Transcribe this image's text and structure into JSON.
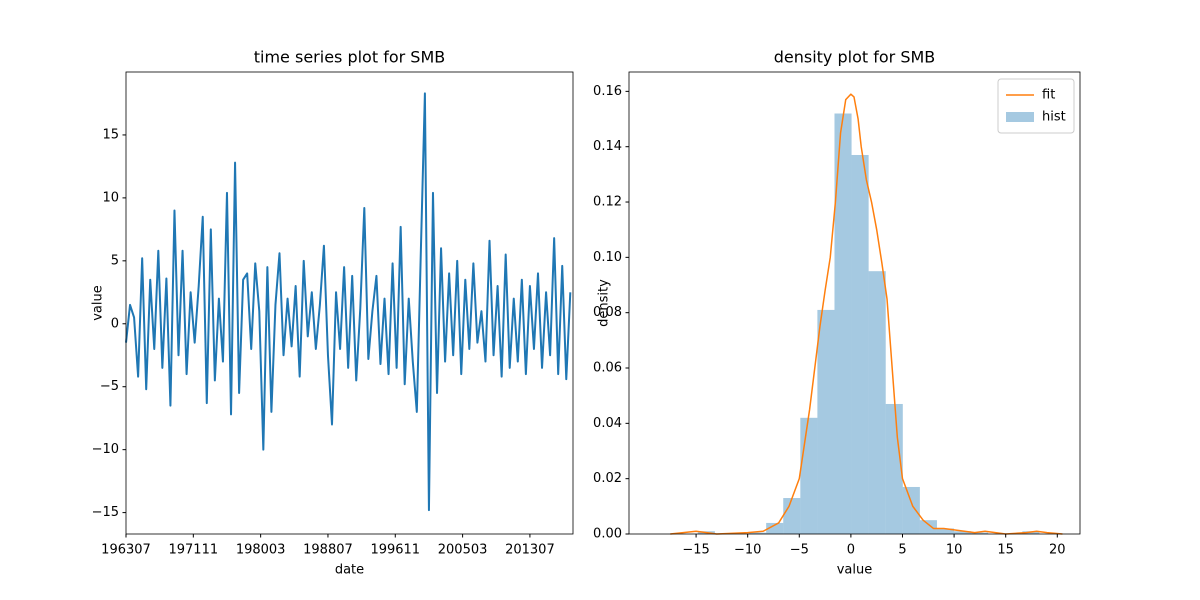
{
  "chart_data": [
    {
      "type": "line",
      "title": "time series plot for SMB",
      "xlabel": "date",
      "ylabel": "value",
      "color": "#1f77b4",
      "x": [
        "196307",
        "196401",
        "196407",
        "196501",
        "196507",
        "196601",
        "196607",
        "196701",
        "196707",
        "196801",
        "196807",
        "196901",
        "196907",
        "197001",
        "197007",
        "197101",
        "197107",
        "197201",
        "197207",
        "197301",
        "197307",
        "197401",
        "197407",
        "197501",
        "197507",
        "197601",
        "197607",
        "197701",
        "197707",
        "197801",
        "197807",
        "197901",
        "197907",
        "198001",
        "198007",
        "198101",
        "198107",
        "198201",
        "198207",
        "198301",
        "198307",
        "198401",
        "198407",
        "198501",
        "198507",
        "198601",
        "198607",
        "198701",
        "198707",
        "198801",
        "198807",
        "198901",
        "198907",
        "199001",
        "199007",
        "199101",
        "199107",
        "199201",
        "199207",
        "199301",
        "199307",
        "199401",
        "199407",
        "199501",
        "199507",
        "199601",
        "199607",
        "199701",
        "199707",
        "199801",
        "199807",
        "199901",
        "199907",
        "200001",
        "200007",
        "200101",
        "200107",
        "200201",
        "200207",
        "200301",
        "200307",
        "200401",
        "200407",
        "200501",
        "200507",
        "200601",
        "200607",
        "200701",
        "200707",
        "200801",
        "200807",
        "200901",
        "200907",
        "201001",
        "201007",
        "201101",
        "201107",
        "201201",
        "201207",
        "201301",
        "201307",
        "201401",
        "201407",
        "201501",
        "201507",
        "201601",
        "201607",
        "201701",
        "201707",
        "201801",
        "201807"
      ],
      "values": [
        -1.5,
        1.5,
        0.5,
        -4.2,
        5.2,
        -5.2,
        3.5,
        -2,
        5.8,
        -3.5,
        3.6,
        -6.5,
        9.0,
        -2.5,
        5.8,
        -4.0,
        2.5,
        -1.5,
        3.0,
        8.5,
        -6.3,
        7.5,
        -4.5,
        2.0,
        -3.0,
        10.4,
        -7.2,
        12.8,
        -5.5,
        3.5,
        4.0,
        -2.0,
        4.8,
        1.0,
        -10.0,
        4.5,
        -7.0,
        1.5,
        5.6,
        -2.5,
        2.0,
        -1.8,
        3.0,
        -4.2,
        5.0,
        -1.0,
        2.5,
        -2.0,
        1.5,
        6.2,
        -2.5,
        -8.0,
        2.5,
        -2.0,
        4.5,
        -3.5,
        3.8,
        -4.5,
        1.2,
        9.2,
        -2.8,
        1.0,
        3.8,
        -3.2,
        2.0,
        -4.0,
        4.8,
        -3.5,
        7.7,
        -4.8,
        2.0,
        -3.0,
        -7.0,
        5.8,
        18.3,
        -14.8,
        10.4,
        -5.5,
        6.0,
        -3.0,
        4.0,
        -2.5,
        5.0,
        -4.0,
        3.5,
        -2.0,
        4.8,
        -1.5,
        1.0,
        -3.0,
        6.6,
        -2.5,
        3.0,
        -4.2,
        5.5,
        -3.5,
        2.0,
        -3.0,
        3.5,
        -4.0,
        3.0,
        -2.0,
        4.0,
        -3.5,
        2.5,
        -2.5,
        6.8,
        -4.0,
        4.6,
        -4.4,
        2.5
      ],
      "xlim": [
        "196307",
        "201811"
      ],
      "xticks": [
        "196307",
        "197111",
        "198003",
        "198807",
        "199611",
        "200503",
        "201307"
      ],
      "ylim": [
        -16.7,
        20.0
      ],
      "yticks": [
        {
          "value": -15,
          "label": "−15"
        },
        {
          "value": -10,
          "label": "−10"
        },
        {
          "value": -5,
          "label": "−5"
        },
        0,
        5,
        10,
        15
      ]
    },
    {
      "type": "histogram",
      "title": "density plot for SMB",
      "xlabel": "value",
      "ylabel": "density",
      "legend": "upper right",
      "series": [
        {
          "name": "fit",
          "color": "#ff7f0e",
          "type": "line",
          "x": [
            -17.5,
            -15,
            -13,
            -10,
            -8.5,
            -7,
            -6,
            -5,
            -4,
            -3,
            -2.5,
            -2,
            -1.5,
            -1,
            -0.5,
            0,
            0.3,
            0.7,
            1,
            1.5,
            2,
            2.5,
            3,
            3.5,
            4,
            4.5,
            5,
            6,
            7,
            8,
            9,
            10,
            11,
            12,
            13,
            15,
            17,
            18,
            19,
            20.5
          ],
          "values": [
            0,
            0.001,
            0,
            0.0005,
            0.001,
            0.004,
            0.01,
            0.02,
            0.045,
            0.075,
            0.088,
            0.1,
            0.12,
            0.145,
            0.157,
            0.159,
            0.158,
            0.15,
            0.14,
            0.128,
            0.12,
            0.11,
            0.098,
            0.085,
            0.06,
            0.035,
            0.02,
            0.01,
            0.005,
            0.002,
            0.002,
            0.0015,
            0.001,
            0.0005,
            0.001,
            0,
            0.0005,
            0.001,
            0.0005,
            0
          ]
        },
        {
          "name": "hist",
          "color": "#1f77b4",
          "type": "histogram",
          "bins": [
            -14.83,
            -13.175,
            -11.52,
            -9.865,
            -8.21,
            -6.555,
            -4.9,
            -3.245,
            -1.59,
            0.065,
            1.72,
            3.375,
            5.03,
            6.685,
            8.34,
            9.995,
            11.65,
            13.305,
            14.96,
            16.615,
            18.27
          ],
          "values": [
            0.001,
            0,
            0,
            0.0005,
            0.004,
            0.013,
            0.042,
            0.081,
            0.152,
            0.137,
            0.095,
            0.047,
            0.017,
            0.005,
            0.002,
            0.001,
            0.0005,
            0,
            0,
            0.001
          ]
        }
      ],
      "xlim": [
        -21.5,
        22.2
      ],
      "xticks": [
        {
          "value": -15,
          "label": "−15"
        },
        {
          "value": -10,
          "label": "−10"
        },
        {
          "value": -5,
          "label": "−5"
        },
        0,
        5,
        10,
        15,
        20
      ],
      "ylim": [
        0,
        0.167
      ],
      "yticks": [
        {
          "value": 0,
          "label": "0.00"
        },
        {
          "value": 0.02,
          "label": "0.02"
        },
        {
          "value": 0.04,
          "label": "0.04"
        },
        {
          "value": 0.06,
          "label": "0.06"
        },
        {
          "value": 0.08,
          "label": "0.08"
        },
        {
          "value": 0.1,
          "label": "0.10"
        },
        {
          "value": 0.12,
          "label": "0.12"
        },
        {
          "value": 0.14,
          "label": "0.14"
        },
        {
          "value": 0.16,
          "label": "0.16"
        }
      ]
    }
  ]
}
